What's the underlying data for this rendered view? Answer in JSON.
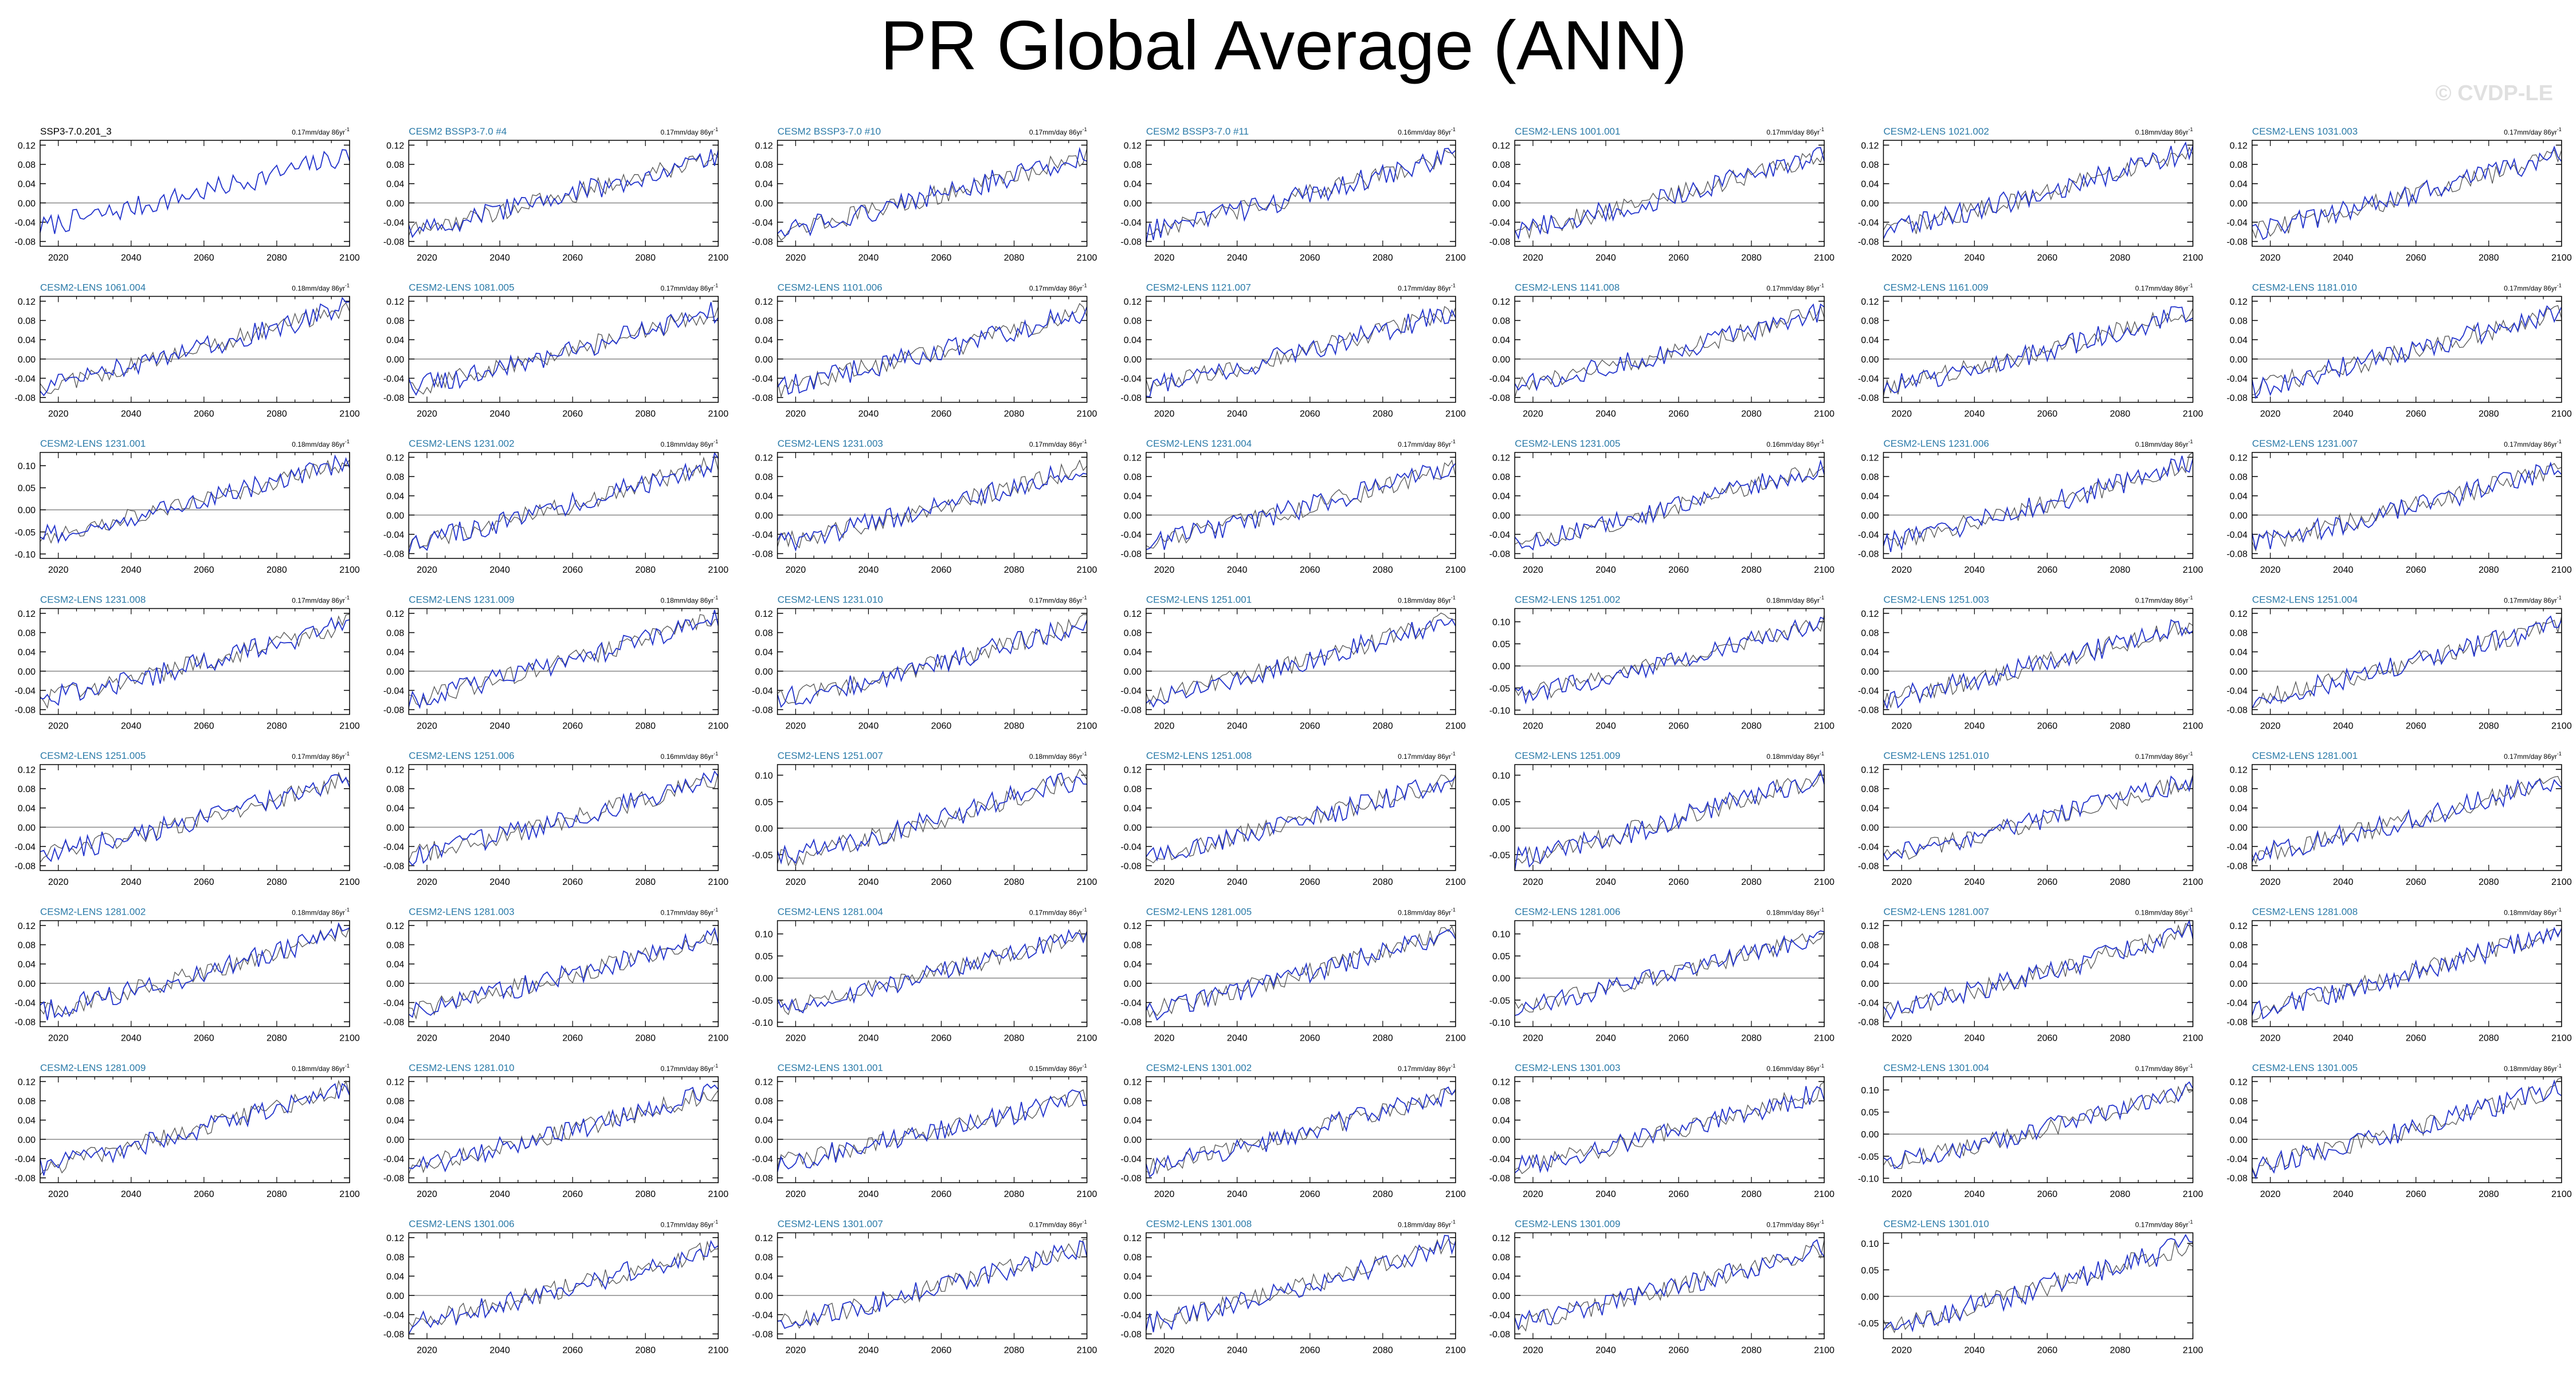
{
  "title": "PR Global Average (ANN)",
  "watermark": "© CVDP-LE",
  "colors": {
    "obs": "#000000",
    "model": "#2233cc",
    "model_title": "#2a7aa8",
    "obs_title": "#000000",
    "zero": "#888888",
    "axis": "#000000",
    "background": "#ffffff"
  },
  "chart_data": {
    "type": "line",
    "x_range": [
      2015,
      2100
    ],
    "x_ticks": [
      2020,
      2040,
      2060,
      2080,
      2100
    ],
    "panels": [
      {
        "title": "SSP3-7.0.201_3",
        "trend": "0.17mm/day 86yr",
        "trend_sup": "-1",
        "yticks": [
          "0.12",
          "0.08",
          "0.04",
          "0.00",
          "-0.04",
          "-0.08"
        ],
        "ylim": [
          -0.09,
          0.13
        ],
        "start": -0.05,
        "end": 0.1,
        "is_obs": true
      },
      {
        "title": "CESM2 BSSP3-7.0 #4",
        "trend": "0.17mm/day 86yr",
        "trend_sup": "-1",
        "yticks": [
          "0.12",
          "0.08",
          "0.04",
          "0.00",
          "-0.04",
          "-0.08"
        ],
        "ylim": [
          -0.09,
          0.13
        ],
        "start": -0.06,
        "end": 0.1
      },
      {
        "title": "CESM2 BSSP3-7.0 #10",
        "trend": "0.17mm/day 86yr",
        "trend_sup": "-1",
        "yticks": [
          "0.12",
          "0.08",
          "0.04",
          "0.00",
          "-0.04",
          "-0.08"
        ],
        "ylim": [
          -0.09,
          0.13
        ],
        "start": -0.06,
        "end": 0.1
      },
      {
        "title": "CESM2 BSSP3-7.0 #11",
        "trend": "0.16mm/day 86yr",
        "trend_sup": "-1",
        "yticks": [
          "0.12",
          "0.08",
          "0.04",
          "0.00",
          "-0.04",
          "-0.08"
        ],
        "ylim": [
          -0.09,
          0.13
        ],
        "start": -0.06,
        "end": 0.1
      },
      {
        "title": "CESM2-LENS 1001.001",
        "trend": "0.17mm/day 86yr",
        "trend_sup": "-1",
        "yticks": [
          "0.12",
          "0.08",
          "0.04",
          "0.00",
          "-0.04",
          "-0.08"
        ],
        "ylim": [
          -0.09,
          0.13
        ],
        "start": -0.06,
        "end": 0.1
      },
      {
        "title": "CESM2-LENS 1021.002",
        "trend": "0.18mm/day 86yr",
        "trend_sup": "-1",
        "yticks": [
          "0.12",
          "0.08",
          "0.04",
          "0.00",
          "-0.04",
          "-0.08"
        ],
        "ylim": [
          -0.09,
          0.13
        ],
        "start": -0.06,
        "end": 0.11
      },
      {
        "title": "CESM2-LENS 1031.003",
        "trend": "0.17mm/day 86yr",
        "trend_sup": "-1",
        "yticks": [
          "0.12",
          "0.08",
          "0.04",
          "0.00",
          "-0.04",
          "-0.08"
        ],
        "ylim": [
          -0.09,
          0.13
        ],
        "start": -0.06,
        "end": 0.1
      },
      {
        "title": "CESM2-LENS 1061.004",
        "trend": "0.18mm/day 86yr",
        "trend_sup": "-1",
        "yticks": [
          "0.12",
          "0.08",
          "0.04",
          "0.00",
          "-0.04",
          "-0.08"
        ],
        "ylim": [
          -0.09,
          0.13
        ],
        "start": -0.06,
        "end": 0.11
      },
      {
        "title": "CESM2-LENS 1081.005",
        "trend": "0.17mm/day 86yr",
        "trend_sup": "-1",
        "yticks": [
          "0.12",
          "0.08",
          "0.04",
          "0.00",
          "-0.04",
          "-0.08"
        ],
        "ylim": [
          -0.09,
          0.13
        ],
        "start": -0.06,
        "end": 0.1
      },
      {
        "title": "CESM2-LENS 1101.006",
        "trend": "0.17mm/day 86yr",
        "trend_sup": "-1",
        "yticks": [
          "0.12",
          "0.08",
          "0.04",
          "0.00",
          "-0.04",
          "-0.08"
        ],
        "ylim": [
          -0.09,
          0.13
        ],
        "start": -0.06,
        "end": 0.1
      },
      {
        "title": "CESM2-LENS 1121.007",
        "trend": "0.17mm/day 86yr",
        "trend_sup": "-1",
        "yticks": [
          "0.12",
          "0.08",
          "0.04",
          "0.00",
          "-0.04",
          "-0.08"
        ],
        "ylim": [
          -0.09,
          0.13
        ],
        "start": -0.06,
        "end": 0.1
      },
      {
        "title": "CESM2-LENS 1141.008",
        "trend": "0.17mm/day 86yr",
        "trend_sup": "-1",
        "yticks": [
          "0.12",
          "0.08",
          "0.04",
          "0.00",
          "-0.04",
          "-0.08"
        ],
        "ylim": [
          -0.09,
          0.13
        ],
        "start": -0.06,
        "end": 0.1
      },
      {
        "title": "CESM2-LENS 1161.009",
        "trend": "0.17mm/day 86yr",
        "trend_sup": "-1",
        "yticks": [
          "0.12",
          "0.08",
          "0.04",
          "0.00",
          "-0.04",
          "-0.08"
        ],
        "ylim": [
          -0.09,
          0.13
        ],
        "start": -0.06,
        "end": 0.1
      },
      {
        "title": "CESM2-LENS 1181.010",
        "trend": "0.17mm/day 86yr",
        "trend_sup": "-1",
        "yticks": [
          "0.12",
          "0.08",
          "0.04",
          "0.00",
          "-0.04",
          "-0.08"
        ],
        "ylim": [
          -0.09,
          0.13
        ],
        "start": -0.06,
        "end": 0.1
      },
      {
        "title": "CESM2-LENS 1231.001",
        "trend": "0.18mm/day 86yr",
        "trend_sup": "-1",
        "yticks": [
          "0.10",
          "0.05",
          "0.00",
          "-0.05",
          "-0.10"
        ],
        "ylim": [
          -0.11,
          0.13
        ],
        "start": -0.06,
        "end": 0.11
      },
      {
        "title": "CESM2-LENS 1231.002",
        "trend": "0.18mm/day 86yr",
        "trend_sup": "-1",
        "yticks": [
          "0.12",
          "0.08",
          "0.04",
          "0.00",
          "-0.04",
          "-0.08"
        ],
        "ylim": [
          -0.09,
          0.13
        ],
        "start": -0.06,
        "end": 0.11
      },
      {
        "title": "CESM2-LENS 1231.003",
        "trend": "0.17mm/day 86yr",
        "trend_sup": "-1",
        "yticks": [
          "0.12",
          "0.08",
          "0.04",
          "0.00",
          "-0.04",
          "-0.08"
        ],
        "ylim": [
          -0.09,
          0.13
        ],
        "start": -0.06,
        "end": 0.1
      },
      {
        "title": "CESM2-LENS 1231.004",
        "trend": "0.17mm/day 86yr",
        "trend_sup": "-1",
        "yticks": [
          "0.12",
          "0.08",
          "0.04",
          "0.00",
          "-0.04",
          "-0.08"
        ],
        "ylim": [
          -0.09,
          0.13
        ],
        "start": -0.06,
        "end": 0.1
      },
      {
        "title": "CESM2-LENS 1231.005",
        "trend": "0.16mm/day 86yr",
        "trend_sup": "-1",
        "yticks": [
          "0.12",
          "0.08",
          "0.04",
          "0.00",
          "-0.04",
          "-0.08"
        ],
        "ylim": [
          -0.09,
          0.13
        ],
        "start": -0.06,
        "end": 0.1
      },
      {
        "title": "CESM2-LENS 1231.006",
        "trend": "0.18mm/day 86yr",
        "trend_sup": "-1",
        "yticks": [
          "0.12",
          "0.08",
          "0.04",
          "0.00",
          "-0.04",
          "-0.08"
        ],
        "ylim": [
          -0.09,
          0.13
        ],
        "start": -0.06,
        "end": 0.11
      },
      {
        "title": "CESM2-LENS 1231.007",
        "trend": "0.17mm/day 86yr",
        "trend_sup": "-1",
        "yticks": [
          "0.12",
          "0.08",
          "0.04",
          "0.00",
          "-0.04",
          "-0.08"
        ],
        "ylim": [
          -0.09,
          0.13
        ],
        "start": -0.06,
        "end": 0.1
      },
      {
        "title": "CESM2-LENS 1231.008",
        "trend": "0.17mm/day 86yr",
        "trend_sup": "-1",
        "yticks": [
          "0.12",
          "0.08",
          "0.04",
          "0.00",
          "-0.04",
          "-0.08"
        ],
        "ylim": [
          -0.09,
          0.13
        ],
        "start": -0.06,
        "end": 0.1
      },
      {
        "title": "CESM2-LENS 1231.009",
        "trend": "0.18mm/day 86yr",
        "trend_sup": "-1",
        "yticks": [
          "0.12",
          "0.08",
          "0.04",
          "0.00",
          "-0.04",
          "-0.08"
        ],
        "ylim": [
          -0.09,
          0.13
        ],
        "start": -0.06,
        "end": 0.11
      },
      {
        "title": "CESM2-LENS 1231.010",
        "trend": "0.17mm/day 86yr",
        "trend_sup": "-1",
        "yticks": [
          "0.12",
          "0.08",
          "0.04",
          "0.00",
          "-0.04",
          "-0.08"
        ],
        "ylim": [
          -0.09,
          0.13
        ],
        "start": -0.06,
        "end": 0.1
      },
      {
        "title": "CESM2-LENS 1251.001",
        "trend": "0.18mm/day 86yr",
        "trend_sup": "-1",
        "yticks": [
          "0.12",
          "0.08",
          "0.04",
          "0.00",
          "-0.04",
          "-0.08"
        ],
        "ylim": [
          -0.09,
          0.13
        ],
        "start": -0.06,
        "end": 0.11
      },
      {
        "title": "CESM2-LENS 1251.002",
        "trend": "0.18mm/day 86yr",
        "trend_sup": "-1",
        "yticks": [
          "0.10",
          "0.05",
          "0.00",
          "-0.05",
          "-0.10"
        ],
        "ylim": [
          -0.11,
          0.13
        ],
        "start": -0.07,
        "end": 0.1
      },
      {
        "title": "CESM2-LENS 1251.003",
        "trend": "0.17mm/day 86yr",
        "trend_sup": "-1",
        "yticks": [
          "0.12",
          "0.08",
          "0.04",
          "0.00",
          "-0.04",
          "-0.08"
        ],
        "ylim": [
          -0.09,
          0.13
        ],
        "start": -0.06,
        "end": 0.1
      },
      {
        "title": "CESM2-LENS 1251.004",
        "trend": "0.17mm/day 86yr",
        "trend_sup": "-1",
        "yticks": [
          "0.12",
          "0.08",
          "0.04",
          "0.00",
          "-0.04",
          "-0.08"
        ],
        "ylim": [
          -0.09,
          0.13
        ],
        "start": -0.06,
        "end": 0.1
      },
      {
        "title": "CESM2-LENS 1251.005",
        "trend": "0.17mm/day 86yr",
        "trend_sup": "-1",
        "yticks": [
          "0.12",
          "0.08",
          "0.04",
          "0.00",
          "-0.04",
          "-0.08"
        ],
        "ylim": [
          -0.09,
          0.13
        ],
        "start": -0.06,
        "end": 0.1
      },
      {
        "title": "CESM2-LENS 1251.006",
        "trend": "0.16mm/day 86yr",
        "trend_sup": "-1",
        "yticks": [
          "0.12",
          "0.08",
          "0.04",
          "0.00",
          "-0.04",
          "-0.08"
        ],
        "ylim": [
          -0.09,
          0.13
        ],
        "start": -0.06,
        "end": 0.1
      },
      {
        "title": "CESM2-LENS 1251.007",
        "trend": "0.18mm/day 86yr",
        "trend_sup": "-1",
        "yticks": [
          "0.10",
          "0.05",
          "0.00",
          "-0.05"
        ],
        "ylim": [
          -0.08,
          0.12
        ],
        "start": -0.06,
        "end": 0.1
      },
      {
        "title": "CESM2-LENS 1251.008",
        "trend": "0.17mm/day 86yr",
        "trend_sup": "-1",
        "yticks": [
          "0.12",
          "0.08",
          "0.04",
          "0.00",
          "-0.04",
          "-0.08"
        ],
        "ylim": [
          -0.09,
          0.13
        ],
        "start": -0.06,
        "end": 0.1
      },
      {
        "title": "CESM2-LENS 1251.009",
        "trend": "0.18mm/day 86yr",
        "trend_sup": "-1",
        "yticks": [
          "0.10",
          "0.05",
          "0.00",
          "-0.05"
        ],
        "ylim": [
          -0.08,
          0.12
        ],
        "start": -0.06,
        "end": 0.1
      },
      {
        "title": "CESM2-LENS 1251.010",
        "trend": "0.17mm/day 86yr",
        "trend_sup": "-1",
        "yticks": [
          "0.12",
          "0.08",
          "0.04",
          "0.00",
          "-0.04",
          "-0.08"
        ],
        "ylim": [
          -0.09,
          0.13
        ],
        "start": -0.06,
        "end": 0.1
      },
      {
        "title": "CESM2-LENS 1281.001",
        "trend": "0.17mm/day 86yr",
        "trend_sup": "-1",
        "yticks": [
          "0.12",
          "0.08",
          "0.04",
          "0.00",
          "-0.04",
          "-0.08"
        ],
        "ylim": [
          -0.09,
          0.13
        ],
        "start": -0.06,
        "end": 0.1
      },
      {
        "title": "CESM2-LENS 1281.002",
        "trend": "0.18mm/day 86yr",
        "trend_sup": "-1",
        "yticks": [
          "0.12",
          "0.08",
          "0.04",
          "0.00",
          "-0.04",
          "-0.08"
        ],
        "ylim": [
          -0.09,
          0.13
        ],
        "start": -0.06,
        "end": 0.11
      },
      {
        "title": "CESM2-LENS 1281.003",
        "trend": "0.17mm/day 86yr",
        "trend_sup": "-1",
        "yticks": [
          "0.12",
          "0.08",
          "0.04",
          "0.00",
          "-0.04",
          "-0.08"
        ],
        "ylim": [
          -0.09,
          0.13
        ],
        "start": -0.06,
        "end": 0.1
      },
      {
        "title": "CESM2-LENS 1281.004",
        "trend": "0.17mm/day 86yr",
        "trend_sup": "-1",
        "yticks": [
          "0.10",
          "0.05",
          "0.00",
          "-0.05",
          "-0.10"
        ],
        "ylim": [
          -0.11,
          0.13
        ],
        "start": -0.07,
        "end": 0.1
      },
      {
        "title": "CESM2-LENS 1281.005",
        "trend": "0.18mm/day 86yr",
        "trend_sup": "-1",
        "yticks": [
          "0.12",
          "0.08",
          "0.04",
          "0.00",
          "-0.04",
          "-0.08"
        ],
        "ylim": [
          -0.09,
          0.13
        ],
        "start": -0.06,
        "end": 0.11
      },
      {
        "title": "CESM2-LENS 1281.006",
        "trend": "0.18mm/day 86yr",
        "trend_sup": "-1",
        "yticks": [
          "0.10",
          "0.05",
          "0.00",
          "-0.05",
          "-0.10"
        ],
        "ylim": [
          -0.11,
          0.13
        ],
        "start": -0.07,
        "end": 0.1
      },
      {
        "title": "CESM2-LENS 1281.007",
        "trend": "0.18mm/day 86yr",
        "trend_sup": "-1",
        "yticks": [
          "0.12",
          "0.08",
          "0.04",
          "0.00",
          "-0.04",
          "-0.08"
        ],
        "ylim": [
          -0.09,
          0.13
        ],
        "start": -0.06,
        "end": 0.11
      },
      {
        "title": "CESM2-LENS 1281.008",
        "trend": "0.18mm/day 86yr",
        "trend_sup": "-1",
        "yticks": [
          "0.12",
          "0.08",
          "0.04",
          "0.00",
          "-0.04",
          "-0.08"
        ],
        "ylim": [
          -0.09,
          0.13
        ],
        "start": -0.06,
        "end": 0.11
      },
      {
        "title": "CESM2-LENS 1281.009",
        "trend": "0.18mm/day 86yr",
        "trend_sup": "-1",
        "yticks": [
          "0.12",
          "0.08",
          "0.04",
          "0.00",
          "-0.04",
          "-0.08"
        ],
        "ylim": [
          -0.09,
          0.13
        ],
        "start": -0.06,
        "end": 0.11
      },
      {
        "title": "CESM2-LENS 1281.010",
        "trend": "0.17mm/day 86yr",
        "trend_sup": "-1",
        "yticks": [
          "0.12",
          "0.08",
          "0.04",
          "0.00",
          "-0.04",
          "-0.08"
        ],
        "ylim": [
          -0.09,
          0.13
        ],
        "start": -0.06,
        "end": 0.1
      },
      {
        "title": "CESM2-LENS 1301.001",
        "trend": "0.15mm/day 86yr",
        "trend_sup": "-1",
        "yticks": [
          "0.12",
          "0.08",
          "0.04",
          "0.00",
          "-0.04",
          "-0.08"
        ],
        "ylim": [
          -0.09,
          0.13
        ],
        "start": -0.05,
        "end": 0.09
      },
      {
        "title": "CESM2-LENS 1301.002",
        "trend": "0.17mm/day 86yr",
        "trend_sup": "-1",
        "yticks": [
          "0.12",
          "0.08",
          "0.04",
          "0.00",
          "-0.04",
          "-0.08"
        ],
        "ylim": [
          -0.09,
          0.13
        ],
        "start": -0.06,
        "end": 0.1
      },
      {
        "title": "CESM2-LENS 1301.003",
        "trend": "0.16mm/day 86yr",
        "trend_sup": "-1",
        "yticks": [
          "0.12",
          "0.08",
          "0.04",
          "0.00",
          "-0.04",
          "-0.08"
        ],
        "ylim": [
          -0.09,
          0.13
        ],
        "start": -0.06,
        "end": 0.1
      },
      {
        "title": "CESM2-LENS 1301.004",
        "trend": "0.17mm/day 86yr",
        "trend_sup": "-1",
        "yticks": [
          "0.10",
          "0.05",
          "0.00",
          "-0.05",
          "-0.10"
        ],
        "ylim": [
          -0.11,
          0.13
        ],
        "start": -0.07,
        "end": 0.1
      },
      {
        "title": "CESM2-LENS 1301.005",
        "trend": "0.18mm/day 86yr",
        "trend_sup": "-1",
        "yticks": [
          "0.12",
          "0.08",
          "0.04",
          "0.00",
          "-0.04",
          "-0.08"
        ],
        "ylim": [
          -0.09,
          0.13
        ],
        "start": -0.06,
        "end": 0.11
      },
      {
        "title": "CESM2-LENS 1301.006",
        "trend": "0.17mm/day 86yr",
        "trend_sup": "-1",
        "yticks": [
          "0.12",
          "0.08",
          "0.04",
          "0.00",
          "-0.04",
          "-0.08"
        ],
        "ylim": [
          -0.09,
          0.13
        ],
        "start": -0.06,
        "end": 0.1
      },
      {
        "title": "CESM2-LENS 1301.007",
        "trend": "0.17mm/day 86yr",
        "trend_sup": "-1",
        "yticks": [
          "0.12",
          "0.08",
          "0.04",
          "0.00",
          "-0.04",
          "-0.08"
        ],
        "ylim": [
          -0.09,
          0.13
        ],
        "start": -0.06,
        "end": 0.1
      },
      {
        "title": "CESM2-LENS 1301.008",
        "trend": "0.18mm/day 86yr",
        "trend_sup": "-1",
        "yticks": [
          "0.12",
          "0.08",
          "0.04",
          "0.00",
          "-0.04",
          "-0.08"
        ],
        "ylim": [
          -0.09,
          0.13
        ],
        "start": -0.06,
        "end": 0.11
      },
      {
        "title": "CESM2-LENS 1301.009",
        "trend": "0.17mm/day 86yr",
        "trend_sup": "-1",
        "yticks": [
          "0.12",
          "0.08",
          "0.04",
          "0.00",
          "-0.04",
          "-0.08"
        ],
        "ylim": [
          -0.09,
          0.13
        ],
        "start": -0.06,
        "end": 0.1
      },
      {
        "title": "CESM2-LENS 1301.010",
        "trend": "0.17mm/day 86yr",
        "trend_sup": "-1",
        "yticks": [
          "0.10",
          "0.05",
          "0.00",
          "-0.05"
        ],
        "ylim": [
          -0.08,
          0.12
        ],
        "start": -0.06,
        "end": 0.1
      }
    ]
  }
}
